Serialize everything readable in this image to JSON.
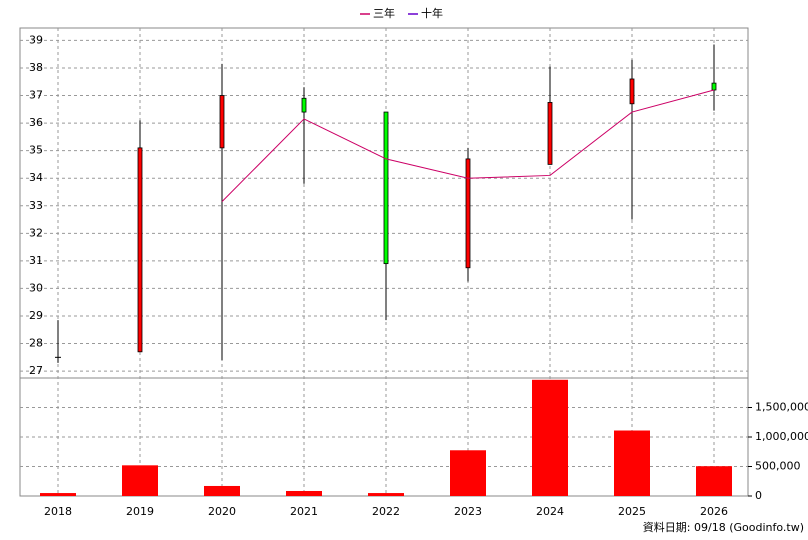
{
  "chart_data": {
    "type": "candlestick",
    "categories": [
      "2018",
      "2019",
      "2020",
      "2021",
      "2022",
      "2023",
      "2024",
      "2025",
      "2026"
    ],
    "open": [
      27.5,
      27.7,
      35.1,
      36.9,
      36.4,
      30.75,
      34.5,
      36.7,
      37.45
    ],
    "high": [
      28.85,
      36.1,
      38.15,
      37.3,
      36.4,
      35.1,
      38.05,
      38.3,
      38.85
    ],
    "low": [
      27.3,
      27.7,
      27.4,
      33.8,
      28.85,
      30.25,
      34.5,
      32.5,
      36.45
    ],
    "close": [
      27.5,
      35.1,
      37.0,
      36.4,
      30.9,
      34.7,
      36.75,
      37.6,
      37.2
    ],
    "up_color": "#ff0000",
    "down_color": "#00ff00",
    "series": [
      {
        "name": "三年",
        "color": "#cc0066",
        "values": [
          null,
          null,
          33.15,
          36.15,
          34.7,
          34.0,
          34.1,
          36.4,
          37.2
        ]
      },
      {
        "name": "十年",
        "color": "#6600cc",
        "values": [
          null,
          null,
          null,
          null,
          null,
          null,
          null,
          null,
          null
        ]
      }
    ],
    "ylim": [
      26.75,
      39.45
    ],
    "yticks": [
      27,
      28,
      29,
      30,
      31,
      32,
      33,
      34,
      35,
      36,
      37,
      38,
      39
    ],
    "grid": true,
    "volume": {
      "color": "#ff0000",
      "values": [
        50000,
        520000,
        170000,
        85000,
        50000,
        775000,
        1970000,
        1110000,
        505000
      ],
      "ylim": [
        0,
        2000000
      ],
      "yticks": [
        0,
        {
          "value": 500000,
          "label": "500,000"
        },
        {
          "value": 1000000,
          "label": "1,000,000"
        },
        {
          "value": 1500000,
          "label": "1,500,000"
        }
      ]
    },
    "footer": "資料日期: 09/18  (Goodinfo.tw)"
  }
}
